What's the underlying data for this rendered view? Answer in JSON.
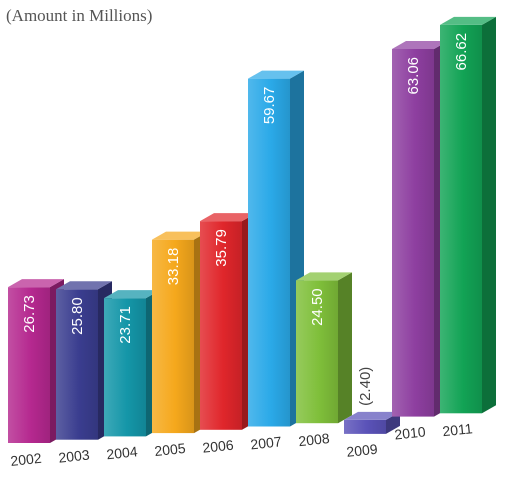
{
  "chart_data": {
    "type": "bar",
    "title": "",
    "subtitle": "(Amount in Millions)",
    "xlabel": "",
    "ylabel": "",
    "grid": false,
    "legend": "none",
    "categories": [
      "2002",
      "2003",
      "2004",
      "2005",
      "2006",
      "2007",
      "2008",
      "2009",
      "2010",
      "2011"
    ],
    "values": [
      26.73,
      25.8,
      23.71,
      33.18,
      35.79,
      59.67,
      24.5,
      -2.4,
      63.06,
      66.62
    ],
    "value_labels": [
      "26.73",
      "25.80",
      "23.71",
      "33.18",
      "35.79",
      "59.67",
      "24.50",
      "(2.40)",
      "63.06",
      "66.62"
    ],
    "colors": [
      "#b5288f",
      "#3a3d8f",
      "#1496a8",
      "#f5a81c",
      "#e0262b",
      "#2aa9e8",
      "#7fbf3a",
      "#5a52b8",
      "#8e3fa0",
      "#12a355"
    ]
  }
}
